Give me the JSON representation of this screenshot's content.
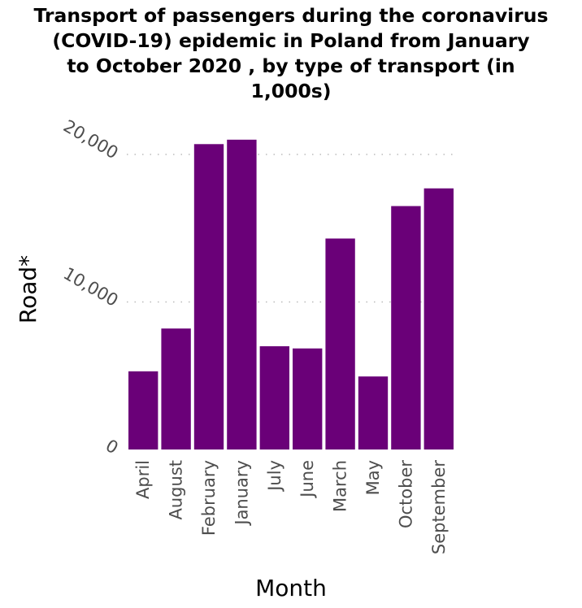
{
  "chart_data": {
    "type": "bar",
    "title_lines": [
      "Transport of passengers during the coronavirus",
      "(COVID-19) epidemic in Poland from January",
      "to October 2020 , by type of transport (in",
      "1,000s)"
    ],
    "xlabel": "Month",
    "ylabel": "Road*",
    "categories": [
      "April",
      "August",
      "February",
      "January",
      "July",
      "June",
      "March",
      "May",
      "October",
      "September"
    ],
    "values": [
      5300,
      8200,
      20700,
      21000,
      7000,
      6850,
      14300,
      4950,
      16500,
      17700
    ],
    "ylim": [
      0,
      20000
    ],
    "yticks": [
      0,
      10000,
      20000
    ],
    "ytick_labels": [
      "0",
      "10,000",
      "20,000"
    ],
    "grid": true,
    "bar_color": "#6a0078",
    "grid_color": "#bbbbbb"
  }
}
